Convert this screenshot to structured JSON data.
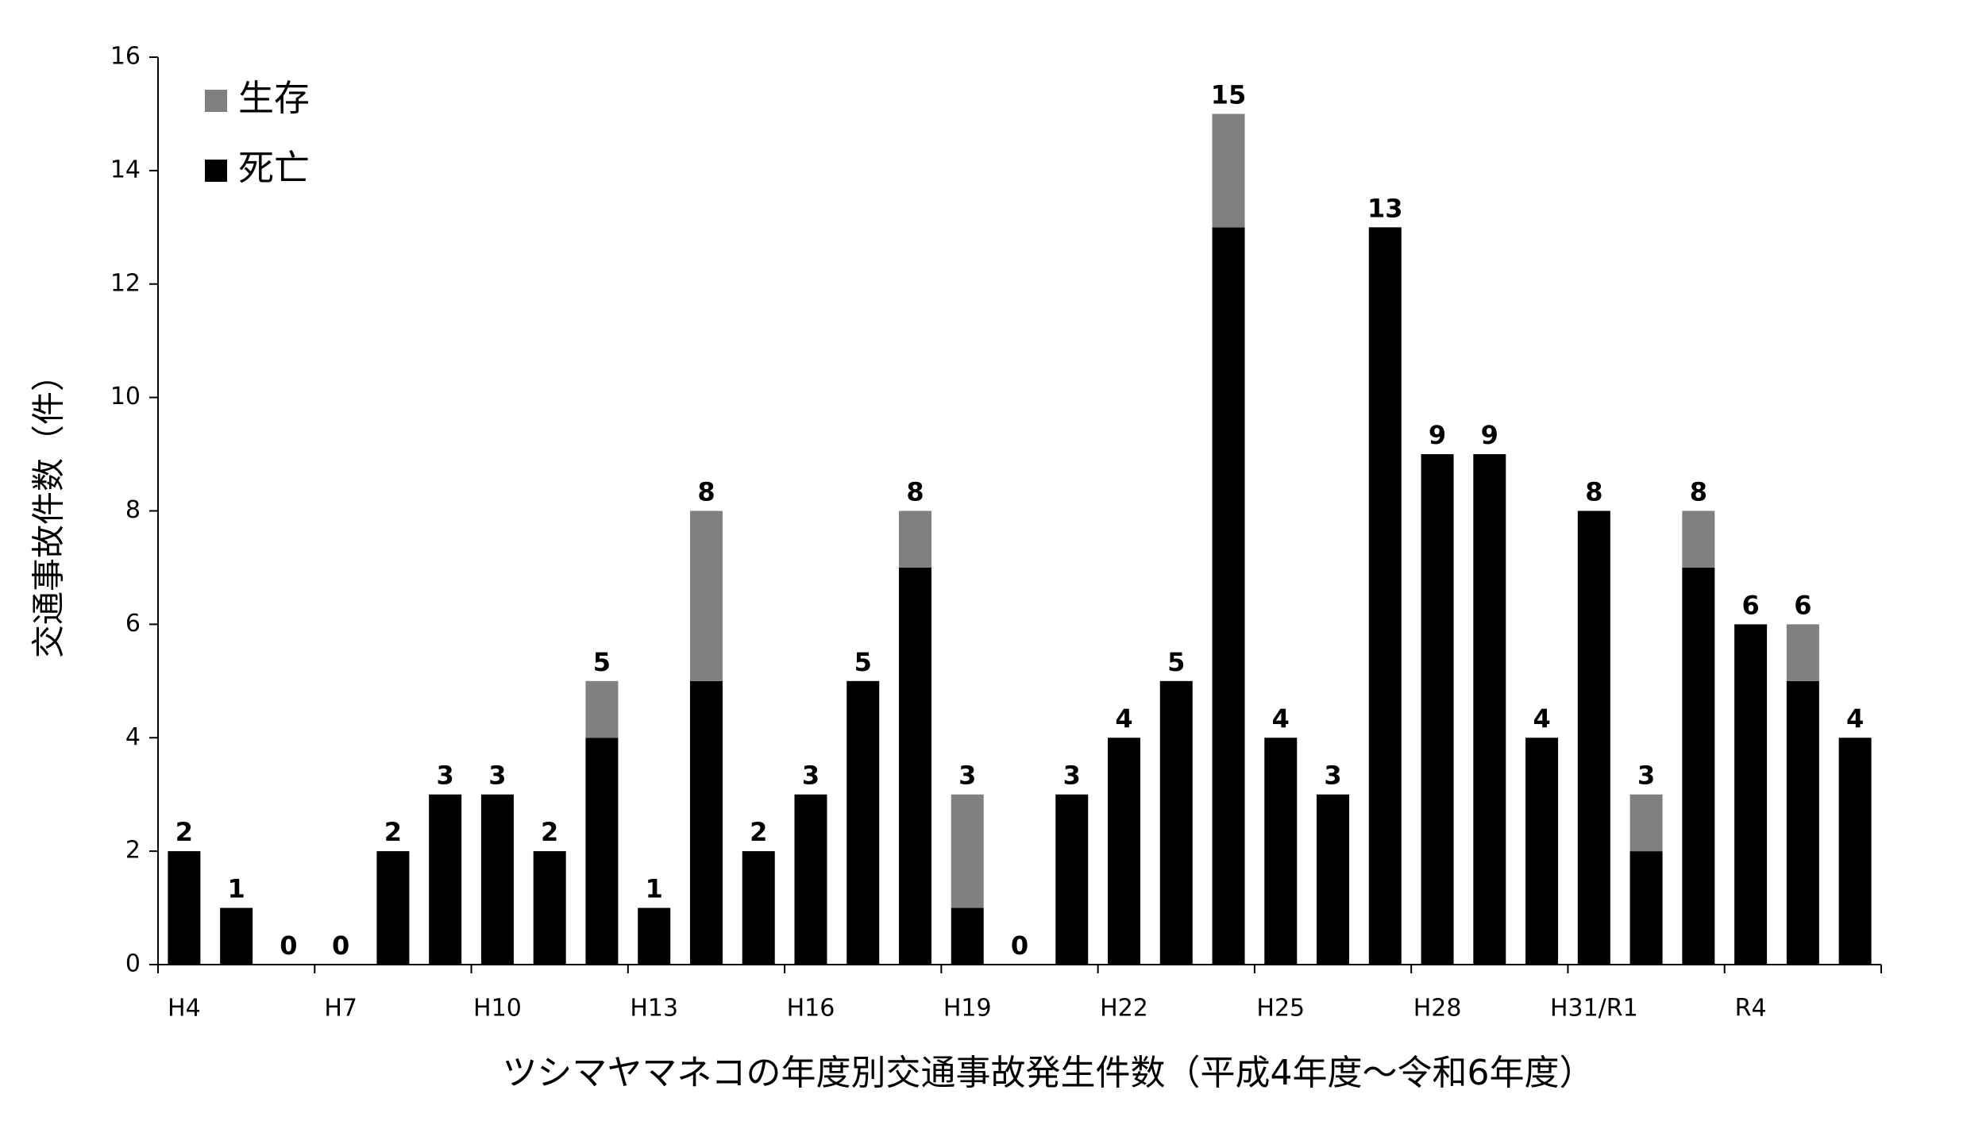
{
  "chart_data": {
    "type": "stacked-bar",
    "title": "ツシマヤマネコの年度別交通事故発生件数（平成4年度～令和6年度）",
    "y_label": "交通事故件数（件）",
    "categories": [
      "H4",
      null,
      null,
      "H7",
      null,
      null,
      "H10",
      null,
      null,
      "H13",
      null,
      null,
      "H16",
      null,
      null,
      "H19",
      null,
      null,
      "H22",
      null,
      null,
      "H25",
      null,
      null,
      "H28",
      null,
      null,
      "H31/R1",
      null,
      null,
      "R4",
      null,
      null
    ],
    "series": [
      {
        "name": "死亡",
        "color": "#000000",
        "values": [
          2,
          1,
          0,
          0,
          2,
          3,
          3,
          2,
          4,
          1,
          5,
          2,
          3,
          5,
          7,
          1,
          0,
          3,
          4,
          5,
          13,
          4,
          3,
          13,
          9,
          9,
          4,
          8,
          2,
          7,
          6,
          5,
          4
        ]
      },
      {
        "name": "生存",
        "color": "#808080",
        "values": [
          0,
          0,
          0,
          0,
          0,
          0,
          0,
          0,
          1,
          0,
          3,
          0,
          0,
          0,
          1,
          2,
          0,
          0,
          0,
          0,
          2,
          0,
          0,
          0,
          0,
          0,
          0,
          0,
          1,
          1,
          0,
          1,
          0
        ]
      }
    ],
    "totals": [
      2,
      1,
      0,
      0,
      2,
      3,
      3,
      2,
      5,
      1,
      8,
      2,
      3,
      5,
      8,
      3,
      0,
      3,
      4,
      5,
      15,
      4,
      3,
      13,
      9,
      9,
      4,
      8,
      3,
      8,
      6,
      6,
      4
    ],
    "ylim": [
      0,
      16
    ],
    "yticks": [
      0,
      2,
      4,
      6,
      8,
      10,
      12,
      14,
      16
    ],
    "legend": "top-left",
    "grid": false
  }
}
